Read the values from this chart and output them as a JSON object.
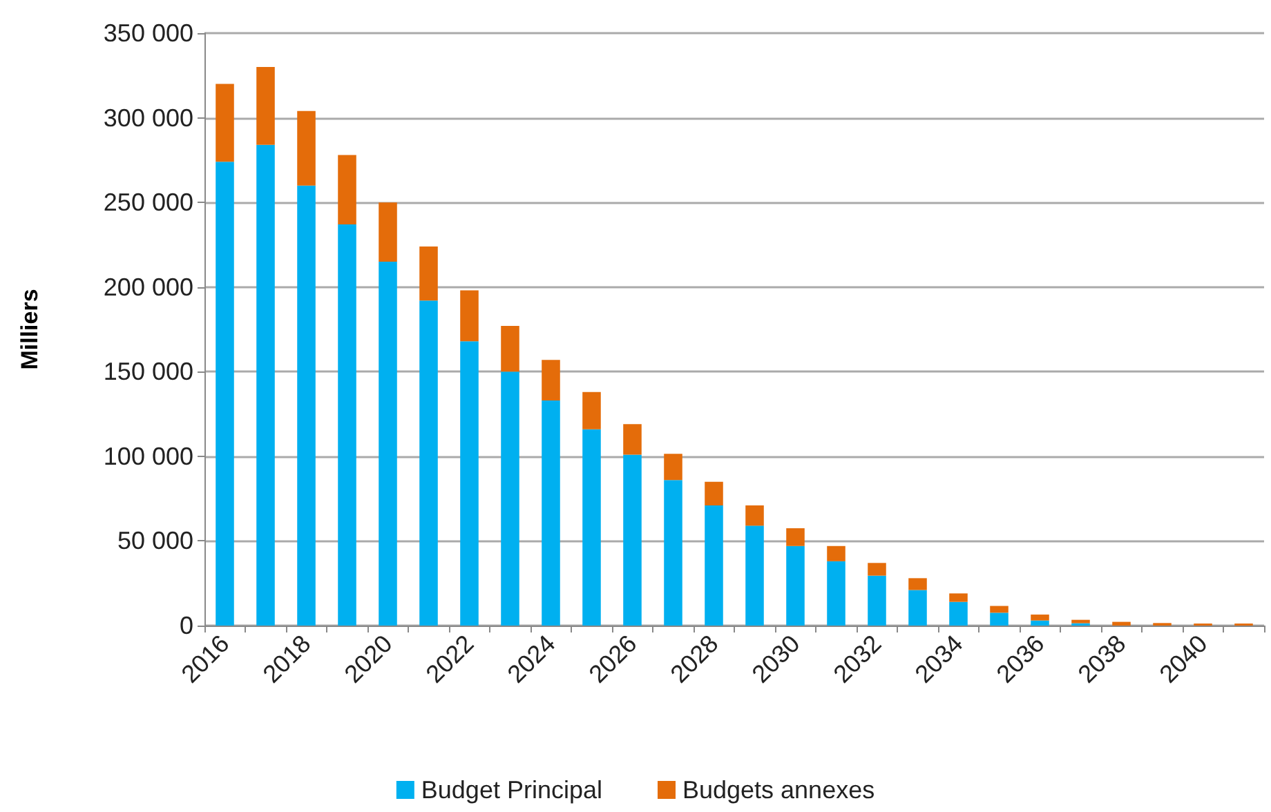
{
  "chart_data": {
    "type": "bar",
    "ylabel": "Milliers",
    "stacked": true,
    "categories": [
      "2016",
      null,
      "2018",
      null,
      "2020",
      null,
      "2022",
      null,
      "2024",
      null,
      "2026",
      null,
      "2028",
      null,
      "2030",
      null,
      "2032",
      null,
      "2034",
      null,
      "2036",
      null,
      "2038",
      null,
      "2040",
      null
    ],
    "series": [
      {
        "name": "Budget Principal",
        "color": "#00b0f0",
        "values": [
          274000,
          284000,
          260000,
          237000,
          215000,
          192000,
          168000,
          150000,
          133000,
          116000,
          101000,
          86000,
          71000,
          59000,
          47000,
          38000,
          29500,
          21000,
          14000,
          7600,
          3000,
          1400,
          0,
          0,
          0,
          0
        ]
      },
      {
        "name": "Budgets annexes",
        "color": "#e46c0a",
        "values": [
          46000,
          46000,
          44000,
          41000,
          35000,
          32000,
          30000,
          27000,
          24000,
          22000,
          18000,
          15500,
          14000,
          12000,
          10500,
          9000,
          7500,
          7000,
          5000,
          4000,
          3500,
          2000,
          2200,
          1500,
          1200,
          1200
        ]
      }
    ],
    "ylim": [
      0,
      350000
    ],
    "yticks": [
      {
        "value": 0,
        "label": "0"
      },
      {
        "value": 50000,
        "label": "50 000"
      },
      {
        "value": 100000,
        "label": "100 000"
      },
      {
        "value": 150000,
        "label": "150 000"
      },
      {
        "value": 200000,
        "label": "200 000"
      },
      {
        "value": 250000,
        "label": "250 000"
      },
      {
        "value": 300000,
        "label": "300 000"
      },
      {
        "value": 350000,
        "label": "350 000"
      }
    ],
    "grid": "y",
    "legend": "bottom"
  }
}
